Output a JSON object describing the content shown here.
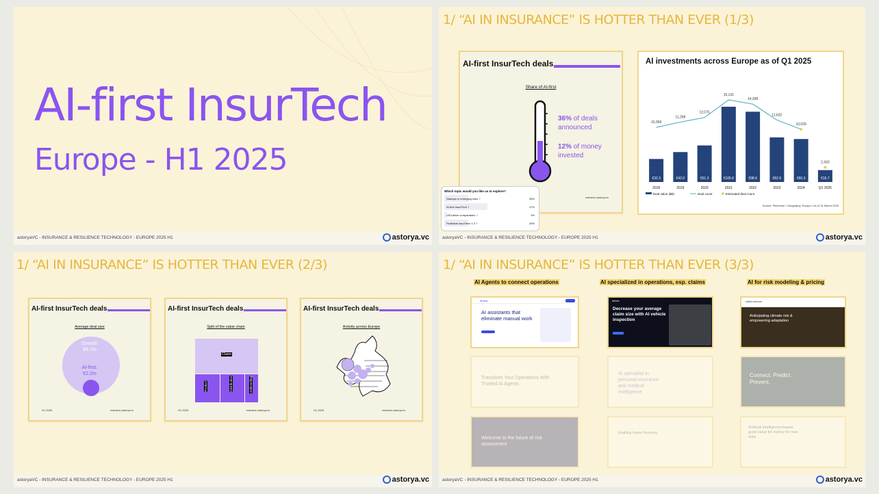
{
  "footer": {
    "text": "astoryaVC - INSURANCE & RESILIENCE TECHNOLOGY - EUROPE 2025 H1",
    "brand": "astorya.vc",
    "brand_icon": "astorya-logo-icon"
  },
  "slide1": {
    "title": "AI-first InsurTech",
    "subtitle": "Europe - H1 2025"
  },
  "slide2": {
    "heading": "1/ “AI IN INSURANCE” IS HOTTER THAN EVER (1/3)",
    "card": {
      "title": "AI-first InsurTech deals",
      "subtitle": "Share of AI-first",
      "stat1_pct": "36%",
      "stat1_line1": "of deals",
      "stat1_line2": "announced",
      "stat2_pct": "12%",
      "stat2_line1": "of money",
      "stat2_line2": "invested",
      "site": "research.astorya.io"
    },
    "poll": {
      "question": "Which topic would you like us to explore?",
      "options": [
        {
          "label": "Startups in emerging risks ?",
          "pct": "26%",
          "value": 0.26
        },
        {
          "label": "AI-first InsurTech ?",
          "pct": "47%",
          "value": 0.47
        },
        {
          "label": "US/LatAm comparables ?",
          "pct": "3%",
          "value": 0.03
        },
        {
          "label": "Profitable InsurTech 1.0 ?",
          "pct": "26%",
          "value": 0.26
        }
      ]
    },
    "chart_title": "AI investments across Europe as of Q1 2025",
    "chart_source": "Source: Pitchbook • Geography: Europe • As of 31 March 2025"
  },
  "chart_data": {
    "type": "bar",
    "title": "AI investments across Europe as of Q1 2025",
    "categories": [
      "2018",
      "2019",
      "2020",
      "2021",
      "2022",
      "2023",
      "2024",
      "Q1 2025"
    ],
    "series": [
      {
        "name": "Deal value ($B)",
        "type": "bar",
        "labels": [
          "€32.3",
          "€42.0",
          "€51.3",
          "€105.6",
          "€98.6",
          "€62.6",
          "€60.3",
          "€16.7"
        ],
        "values": [
          32.3,
          42.0,
          51.3,
          105.6,
          98.6,
          62.6,
          60.3,
          16.7
        ]
      },
      {
        "name": "Deal count",
        "type": "line",
        "labels": [
          "10,369",
          "11,268",
          "12,075",
          "15,131",
          "14,399",
          "11,632",
          "10,029",
          "2,433"
        ],
        "values": [
          10369,
          11268,
          12075,
          15131,
          14399,
          11632,
          10029,
          2433
        ]
      },
      {
        "name": "Estimated deal count",
        "type": "point",
        "values": [
          null,
          null,
          null,
          null,
          null,
          null,
          10029,
          2433
        ]
      }
    ],
    "legend_position": "bottom",
    "colors": {
      "bar": "#24437a",
      "line": "#6bb9c7",
      "estimated": "#e6c64a"
    }
  },
  "slide3": {
    "heading": "1/ “AI IN INSURANCE” IS HOTTER THAN EVER (2/3)",
    "cards": [
      {
        "title": "AI-first InsurTech deals",
        "subtitle": "Average deal size",
        "overall_label": "Overall:",
        "overall_value": "€8.7m",
        "ai_label": "AI-first:",
        "ai_value": "€2.2m",
        "period": "H1 2025",
        "site": "research.astorya.io"
      },
      {
        "title": "AI-first InsurTech deals",
        "subtitle": "Split of the value chain",
        "labels": [
          "Claim",
          "Product",
          "Distribution",
          "Underwriting"
        ],
        "period": "H1 2025",
        "site": "research.astorya.io"
      },
      {
        "title": "AI-first InsurTech deals",
        "subtitle": "Activity across Europe",
        "period": "H1 2025",
        "site": "research.astorya.io"
      }
    ]
  },
  "slide4": {
    "heading": "1/ “AI IN INSURANCE” IS HOTTER THAN EVER (3/3)",
    "columns": [
      {
        "title": "AI Agents to connect operations",
        "headline": "AI assistants that eliminate manual work",
        "brand": "Mutua",
        "faded1": "Transform Your Operations With Trusted AI Agents",
        "faded2": "Welcome to the future of risk assessment"
      },
      {
        "title": "AI specialized in operations, esp. claims",
        "headline": "Decrease your average claim size with AI vehicle inspection",
        "brand": "elmex",
        "faded1": "AI specialist in personal insurance and medical intelligence",
        "faded2": "Enabling Faster Recovery"
      },
      {
        "title": "AI for risk modeling & pricing",
        "headline": "Anticipating climate risk & empowering adaptation",
        "brand": "callet.science",
        "faded1": "Connect. Predict. Prevent.",
        "faded2": "Artificial intelligence-based, good value for money for new risks"
      }
    ]
  }
}
